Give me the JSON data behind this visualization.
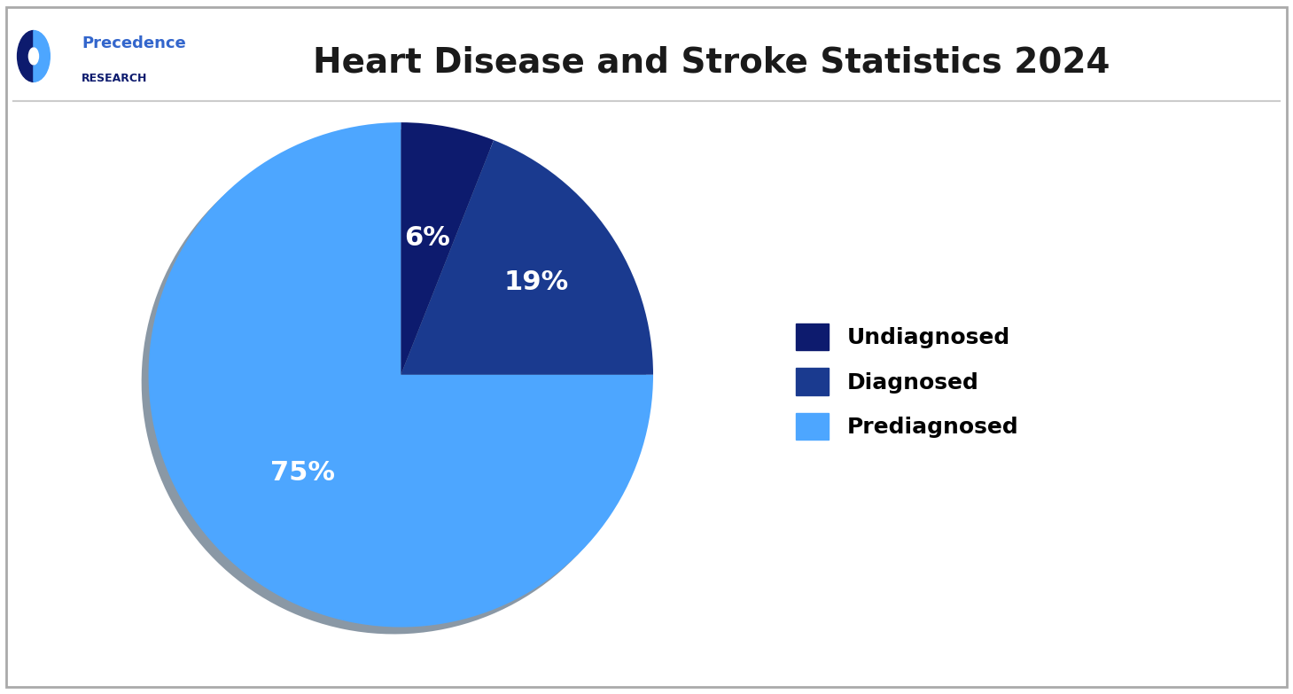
{
  "title": "Heart Disease and Stroke Statistics 2024",
  "slices": [
    6,
    19,
    75
  ],
  "labels": [
    "Undiagnosed",
    "Diagnosed",
    "Prediagnosed"
  ],
  "colors": [
    "#0d1b6e",
    "#1a3a8f",
    "#4da6ff"
  ],
  "pct_labels": [
    "6%",
    "19%",
    "75%"
  ],
  "pct_colors": [
    "white",
    "white",
    "white"
  ],
  "pct_fontsize": 22,
  "legend_fontsize": 18,
  "title_fontsize": 28,
  "background_color": "#ffffff",
  "border_color": "#cccccc",
  "logo_text_precedence": "Precedence",
  "logo_text_research": "RESEARCH",
  "startangle": 90,
  "shadow": true
}
